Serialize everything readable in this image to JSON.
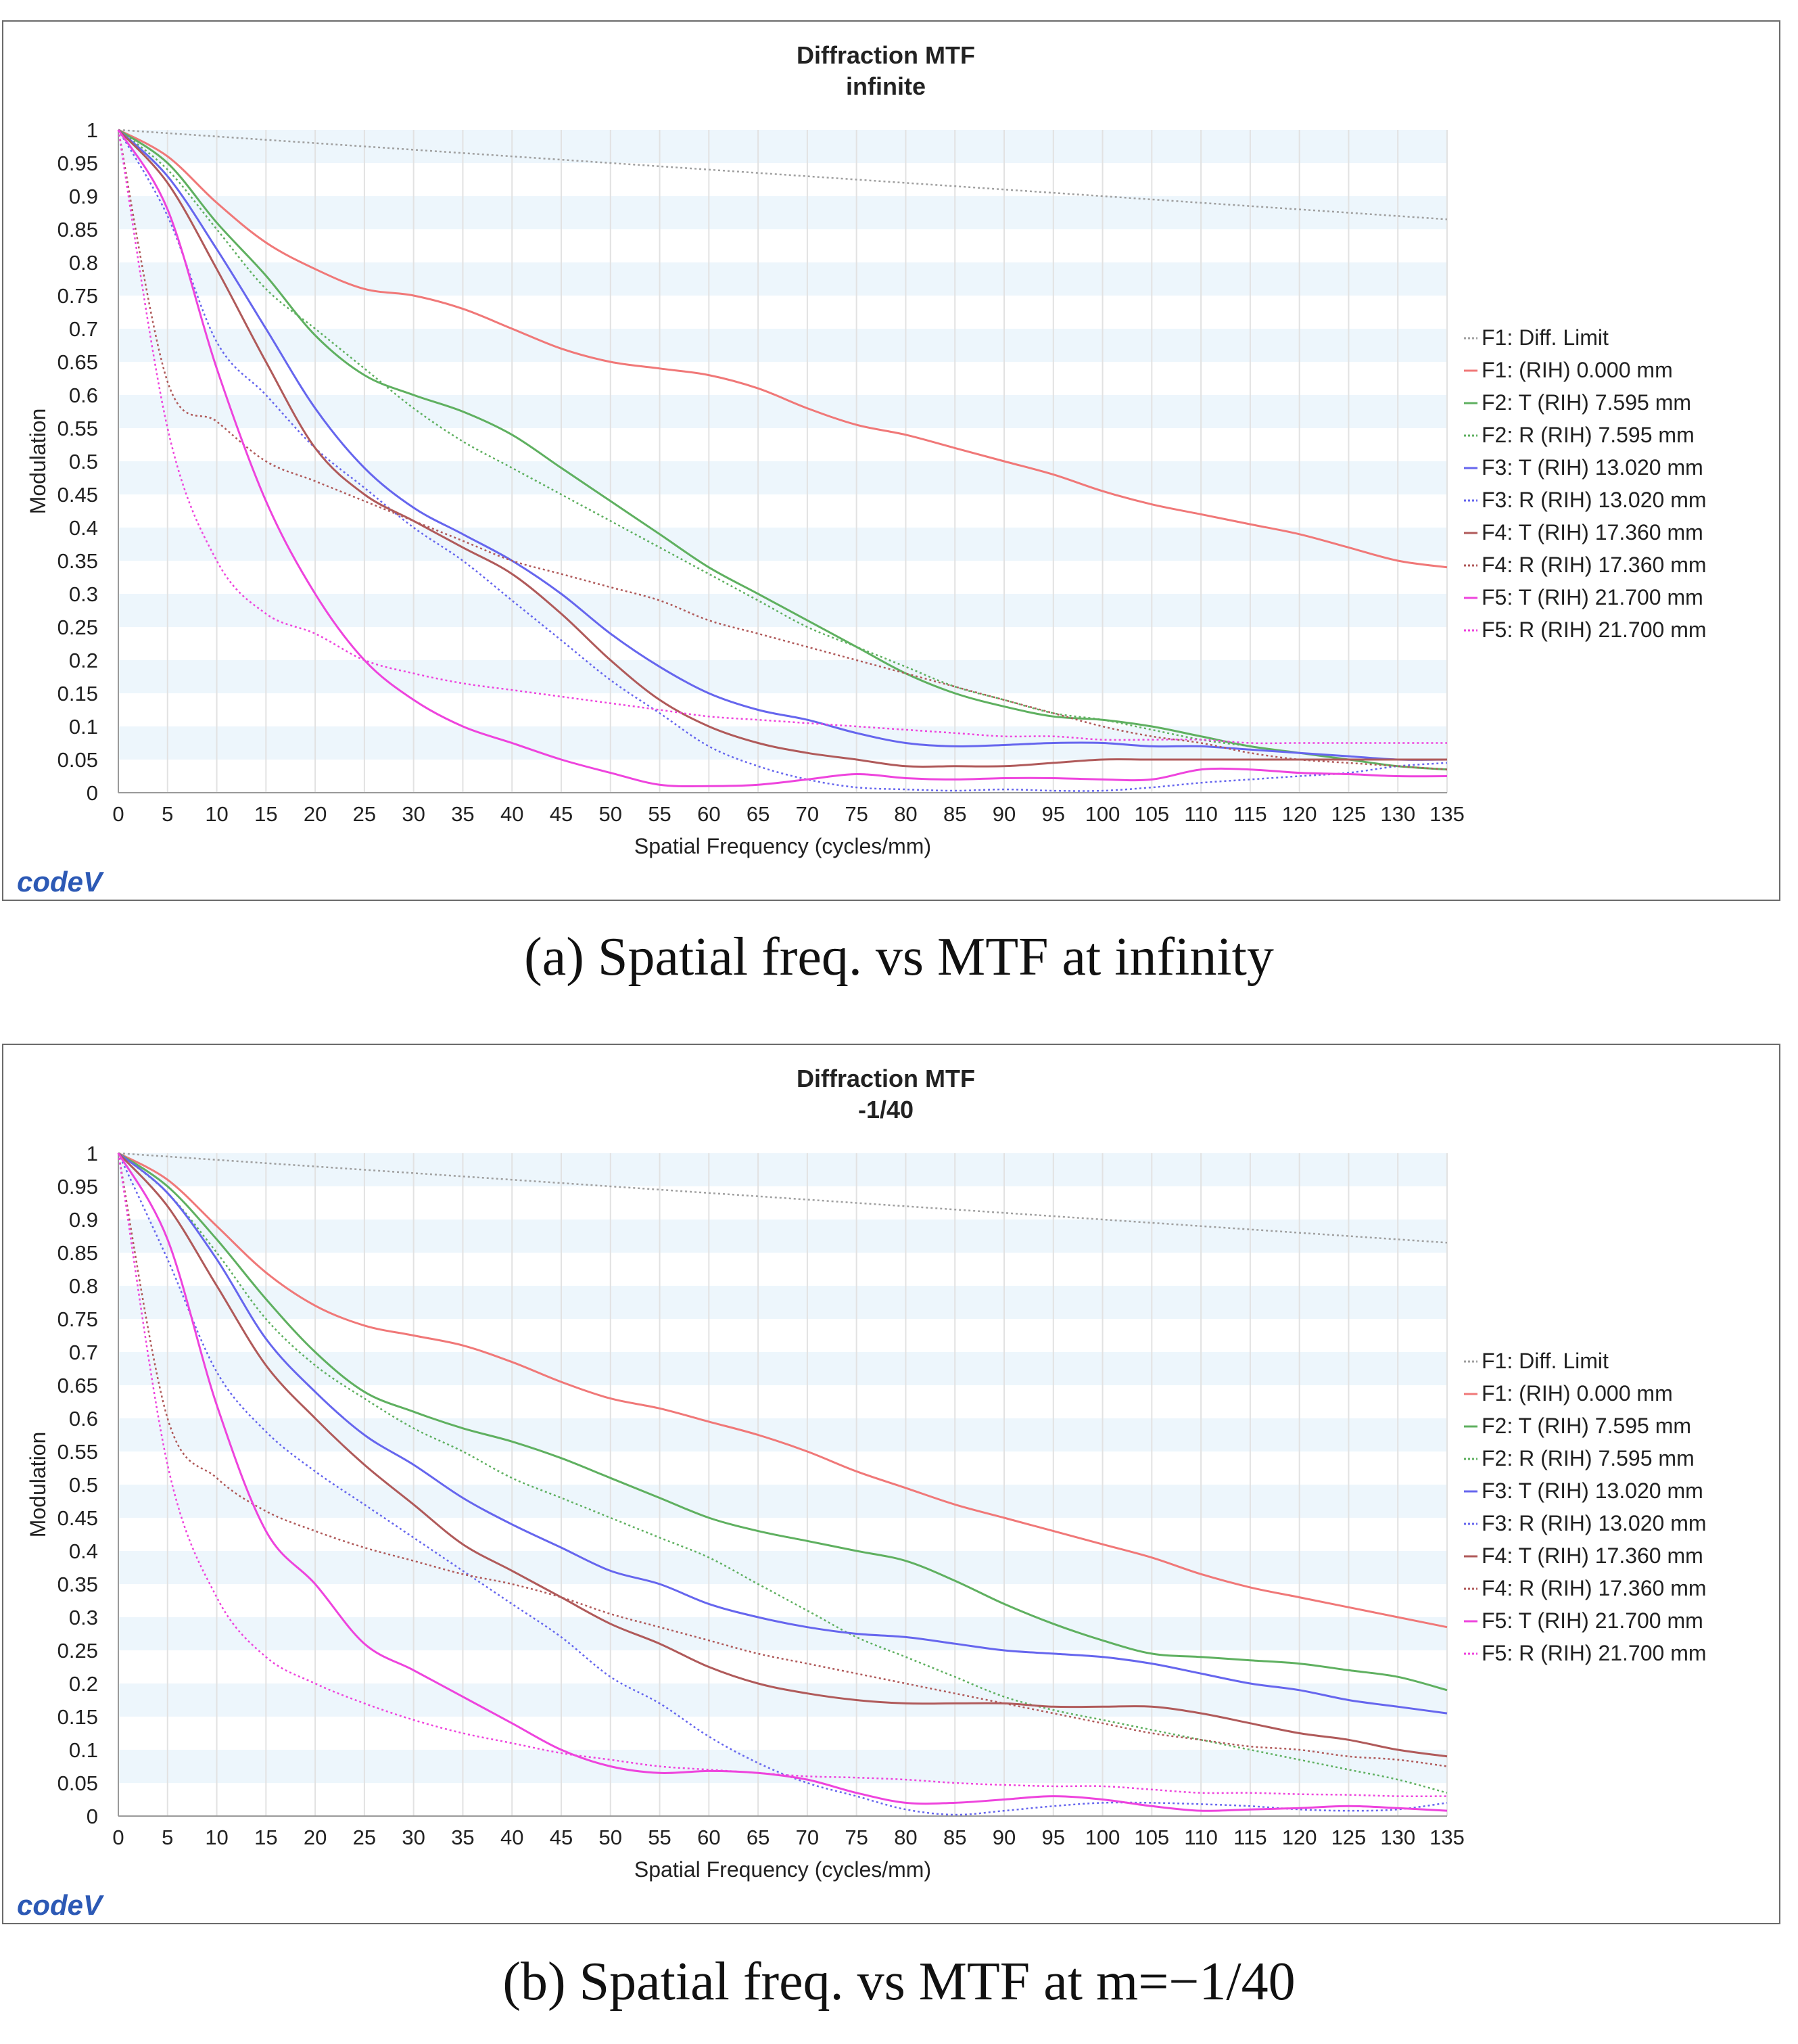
{
  "caption_a": "(a) Spatial freq. vs MTF at infinity",
  "caption_b": "(b) Spatial freq. vs MTF at m=−1/40",
  "logo_text": "code",
  "logo_mark": "V",
  "legend_labels": [
    "F1: Diff. Limit",
    "F1: (RIH) 0.000 mm",
    "F2: T (RIH) 7.595 mm",
    "F2: R (RIH) 7.595 mm",
    "F3: T (RIH) 13.020 mm",
    "F3: R (RIH) 13.020 mm",
    "F4: T (RIH) 17.360 mm",
    "F4: R (RIH) 17.360 mm",
    "F5: T (RIH) 21.700 mm",
    "F5: R (RIH) 21.700 mm"
  ],
  "series_colors": [
    "#a0a0a0",
    "#f07878",
    "#5fb060",
    "#5fb060",
    "#6666ee",
    "#6666ee",
    "#b05a5a",
    "#b05a5a",
    "#ee44dd",
    "#ee44dd"
  ],
  "series_dashed": [
    true,
    false,
    false,
    true,
    false,
    true,
    false,
    true,
    false,
    true
  ],
  "chart_data": [
    {
      "type": "line",
      "title": "Diffraction MTF",
      "subtitle": "infinite",
      "xlabel": "Spatial Frequency (cycles/mm)",
      "ylabel": "Modulation",
      "xlim": [
        0,
        135
      ],
      "ylim": [
        0,
        1
      ],
      "x_ticks": [
        "0",
        "5",
        "10",
        "15",
        "20",
        "25",
        "30",
        "35",
        "40",
        "45",
        "50",
        "55",
        "60",
        "65",
        "70",
        "75",
        "80",
        "85",
        "90",
        "95",
        "100",
        "105",
        "110",
        "115",
        "120",
        "125",
        "130",
        "135"
      ],
      "y_ticks": [
        "0",
        "0.05",
        "0.1",
        "0.15",
        "0.2",
        "0.25",
        "0.3",
        "0.35",
        "0.4",
        "0.45",
        "0.5",
        "0.55",
        "0.6",
        "0.65",
        "0.7",
        "0.75",
        "0.8",
        "0.85",
        "0.9",
        "0.95",
        "1"
      ],
      "grid": true,
      "legend_position": "right",
      "x": [
        0,
        5,
        10,
        15,
        20,
        25,
        30,
        35,
        40,
        45,
        50,
        55,
        60,
        65,
        70,
        75,
        80,
        85,
        90,
        95,
        100,
        105,
        110,
        115,
        120,
        125,
        130,
        135
      ],
      "series": [
        {
          "name": "F1: Diff. Limit",
          "values": [
            1.0,
            0.995,
            0.99,
            0.985,
            0.98,
            0.975,
            0.97,
            0.965,
            0.96,
            0.955,
            0.95,
            0.945,
            0.94,
            0.935,
            0.93,
            0.925,
            0.92,
            0.915,
            0.91,
            0.905,
            0.9,
            0.895,
            0.89,
            0.885,
            0.88,
            0.875,
            0.87,
            0.865
          ]
        },
        {
          "name": "F1: (RIH) 0.000 mm",
          "values": [
            1.0,
            0.96,
            0.89,
            0.83,
            0.79,
            0.76,
            0.75,
            0.73,
            0.7,
            0.67,
            0.65,
            0.64,
            0.63,
            0.61,
            0.58,
            0.555,
            0.54,
            0.52,
            0.5,
            0.48,
            0.455,
            0.435,
            0.42,
            0.405,
            0.39,
            0.37,
            0.35,
            0.34
          ]
        },
        {
          "name": "F2: T (RIH) 7.595 mm",
          "values": [
            1.0,
            0.95,
            0.86,
            0.78,
            0.69,
            0.63,
            0.6,
            0.575,
            0.54,
            0.49,
            0.44,
            0.39,
            0.34,
            0.3,
            0.26,
            0.22,
            0.18,
            0.15,
            0.13,
            0.115,
            0.11,
            0.1,
            0.085,
            0.07,
            0.06,
            0.05,
            0.04,
            0.035
          ]
        },
        {
          "name": "F2: R (RIH) 7.595 mm",
          "values": [
            1.0,
            0.94,
            0.85,
            0.76,
            0.7,
            0.64,
            0.58,
            0.53,
            0.49,
            0.45,
            0.41,
            0.37,
            0.33,
            0.29,
            0.25,
            0.22,
            0.19,
            0.16,
            0.14,
            0.12,
            0.11,
            0.095,
            0.08,
            0.07,
            0.06,
            0.055,
            0.05,
            0.05
          ]
        },
        {
          "name": "F3: T (RIH) 13.020 mm",
          "values": [
            1.0,
            0.93,
            0.82,
            0.7,
            0.58,
            0.49,
            0.43,
            0.39,
            0.35,
            0.3,
            0.24,
            0.19,
            0.15,
            0.125,
            0.11,
            0.09,
            0.075,
            0.07,
            0.072,
            0.075,
            0.075,
            0.07,
            0.07,
            0.065,
            0.06,
            0.055,
            0.05,
            0.05
          ]
        },
        {
          "name": "F3: R (RIH) 13.020 mm",
          "values": [
            1.0,
            0.87,
            0.68,
            0.6,
            0.52,
            0.46,
            0.4,
            0.35,
            0.29,
            0.23,
            0.17,
            0.12,
            0.07,
            0.04,
            0.02,
            0.008,
            0.005,
            0.003,
            0.005,
            0.003,
            0.003,
            0.008,
            0.015,
            0.02,
            0.025,
            0.03,
            0.04,
            0.045
          ]
        },
        {
          "name": "F4: T (RIH) 17.360 mm",
          "values": [
            1.0,
            0.92,
            0.79,
            0.65,
            0.52,
            0.45,
            0.41,
            0.37,
            0.33,
            0.27,
            0.2,
            0.14,
            0.1,
            0.075,
            0.06,
            0.05,
            0.04,
            0.04,
            0.04,
            0.045,
            0.05,
            0.05,
            0.05,
            0.05,
            0.05,
            0.05,
            0.05,
            0.05
          ]
        },
        {
          "name": "F4: R (RIH) 17.360 mm",
          "values": [
            1.0,
            0.62,
            0.56,
            0.5,
            0.47,
            0.44,
            0.41,
            0.38,
            0.35,
            0.33,
            0.31,
            0.29,
            0.26,
            0.24,
            0.22,
            0.2,
            0.18,
            0.16,
            0.14,
            0.12,
            0.1,
            0.085,
            0.075,
            0.06,
            0.05,
            0.045,
            0.04,
            0.035
          ]
        },
        {
          "name": "F5: T (RIH) 21.700 mm",
          "values": [
            1.0,
            0.88,
            0.64,
            0.44,
            0.3,
            0.2,
            0.14,
            0.1,
            0.075,
            0.05,
            0.03,
            0.012,
            0.01,
            0.012,
            0.02,
            0.028,
            0.022,
            0.02,
            0.022,
            0.022,
            0.02,
            0.02,
            0.035,
            0.035,
            0.03,
            0.028,
            0.025,
            0.025
          ]
        },
        {
          "name": "F5: R (RIH) 21.700 mm",
          "values": [
            1.0,
            0.55,
            0.35,
            0.27,
            0.24,
            0.2,
            0.18,
            0.165,
            0.155,
            0.145,
            0.135,
            0.125,
            0.115,
            0.11,
            0.105,
            0.1,
            0.095,
            0.09,
            0.085,
            0.085,
            0.08,
            0.08,
            0.08,
            0.075,
            0.075,
            0.075,
            0.075,
            0.075
          ]
        }
      ]
    },
    {
      "type": "line",
      "title": "Diffraction MTF",
      "subtitle": "-1/40",
      "xlabel": "Spatial Frequency (cycles/mm)",
      "ylabel": "Modulation",
      "xlim": [
        0,
        135
      ],
      "ylim": [
        0,
        1
      ],
      "x_ticks": [
        "0",
        "5",
        "10",
        "15",
        "20",
        "25",
        "30",
        "35",
        "40",
        "45",
        "50",
        "55",
        "60",
        "65",
        "70",
        "75",
        "80",
        "85",
        "90",
        "95",
        "100",
        "105",
        "110",
        "115",
        "120",
        "125",
        "130",
        "135"
      ],
      "y_ticks": [
        "0",
        "0.05",
        "0.1",
        "0.15",
        "0.2",
        "0.25",
        "0.3",
        "0.35",
        "0.4",
        "0.45",
        "0.5",
        "0.55",
        "0.6",
        "0.65",
        "0.7",
        "0.75",
        "0.8",
        "0.85",
        "0.9",
        "0.95",
        "1"
      ],
      "grid": true,
      "legend_position": "right",
      "x": [
        0,
        5,
        10,
        15,
        20,
        25,
        30,
        35,
        40,
        45,
        50,
        55,
        60,
        65,
        70,
        75,
        80,
        85,
        90,
        95,
        100,
        105,
        110,
        115,
        120,
        125,
        130,
        135
      ],
      "series": [
        {
          "name": "F1: Diff. Limit",
          "values": [
            1.0,
            0.995,
            0.99,
            0.985,
            0.98,
            0.975,
            0.97,
            0.965,
            0.96,
            0.955,
            0.95,
            0.945,
            0.94,
            0.935,
            0.93,
            0.925,
            0.92,
            0.915,
            0.91,
            0.905,
            0.9,
            0.895,
            0.89,
            0.885,
            0.88,
            0.875,
            0.87,
            0.865
          ]
        },
        {
          "name": "F1: (RIH) 0.000 mm",
          "values": [
            1.0,
            0.96,
            0.89,
            0.82,
            0.77,
            0.74,
            0.725,
            0.71,
            0.685,
            0.655,
            0.63,
            0.615,
            0.595,
            0.575,
            0.55,
            0.52,
            0.495,
            0.47,
            0.45,
            0.43,
            0.41,
            0.39,
            0.365,
            0.345,
            0.33,
            0.315,
            0.3,
            0.285
          ]
        },
        {
          "name": "F2: T (RIH) 7.595 mm",
          "values": [
            1.0,
            0.95,
            0.87,
            0.78,
            0.7,
            0.64,
            0.61,
            0.585,
            0.565,
            0.54,
            0.51,
            0.48,
            0.45,
            0.43,
            0.415,
            0.4,
            0.385,
            0.355,
            0.32,
            0.29,
            0.265,
            0.245,
            0.24,
            0.235,
            0.23,
            0.22,
            0.21,
            0.19
          ]
        },
        {
          "name": "F2: R (RIH) 7.595 mm",
          "values": [
            1.0,
            0.94,
            0.85,
            0.75,
            0.68,
            0.63,
            0.585,
            0.55,
            0.51,
            0.48,
            0.45,
            0.42,
            0.39,
            0.35,
            0.31,
            0.27,
            0.24,
            0.21,
            0.18,
            0.16,
            0.145,
            0.13,
            0.115,
            0.1,
            0.085,
            0.07,
            0.055,
            0.035
          ]
        },
        {
          "name": "F3: T (RIH) 13.020 mm",
          "values": [
            1.0,
            0.94,
            0.84,
            0.72,
            0.64,
            0.575,
            0.53,
            0.48,
            0.44,
            0.405,
            0.37,
            0.35,
            0.32,
            0.3,
            0.285,
            0.275,
            0.27,
            0.26,
            0.25,
            0.245,
            0.24,
            0.23,
            0.215,
            0.2,
            0.19,
            0.175,
            0.165,
            0.155
          ]
        },
        {
          "name": "F3: R (RIH) 13.020 mm",
          "values": [
            1.0,
            0.84,
            0.67,
            0.58,
            0.52,
            0.47,
            0.42,
            0.37,
            0.32,
            0.27,
            0.21,
            0.17,
            0.12,
            0.08,
            0.05,
            0.03,
            0.01,
            0.002,
            0.008,
            0.015,
            0.02,
            0.02,
            0.018,
            0.015,
            0.01,
            0.008,
            0.01,
            0.02
          ]
        },
        {
          "name": "F4: T (RIH) 17.360 mm",
          "values": [
            1.0,
            0.92,
            0.8,
            0.68,
            0.6,
            0.53,
            0.47,
            0.41,
            0.37,
            0.33,
            0.29,
            0.26,
            0.225,
            0.2,
            0.185,
            0.175,
            0.17,
            0.17,
            0.17,
            0.165,
            0.165,
            0.165,
            0.155,
            0.14,
            0.125,
            0.115,
            0.1,
            0.09
          ]
        },
        {
          "name": "F4: R (RIH) 17.360 mm",
          "values": [
            1.0,
            0.6,
            0.51,
            0.46,
            0.43,
            0.405,
            0.385,
            0.365,
            0.35,
            0.33,
            0.305,
            0.285,
            0.265,
            0.245,
            0.23,
            0.215,
            0.2,
            0.185,
            0.17,
            0.155,
            0.14,
            0.125,
            0.115,
            0.105,
            0.1,
            0.09,
            0.085,
            0.075
          ]
        },
        {
          "name": "F5: T (RIH) 21.700 mm",
          "values": [
            1.0,
            0.87,
            0.62,
            0.43,
            0.35,
            0.26,
            0.22,
            0.18,
            0.14,
            0.1,
            0.075,
            0.065,
            0.068,
            0.065,
            0.055,
            0.035,
            0.02,
            0.02,
            0.025,
            0.03,
            0.025,
            0.015,
            0.008,
            0.01,
            0.012,
            0.015,
            0.012,
            0.008
          ]
        },
        {
          "name": "F5: R (RIH) 21.700 mm",
          "values": [
            1.0,
            0.53,
            0.33,
            0.24,
            0.2,
            0.17,
            0.145,
            0.125,
            0.11,
            0.095,
            0.085,
            0.075,
            0.07,
            0.065,
            0.06,
            0.058,
            0.055,
            0.05,
            0.047,
            0.045,
            0.045,
            0.04,
            0.035,
            0.035,
            0.033,
            0.032,
            0.03,
            0.03
          ]
        }
      ]
    }
  ]
}
